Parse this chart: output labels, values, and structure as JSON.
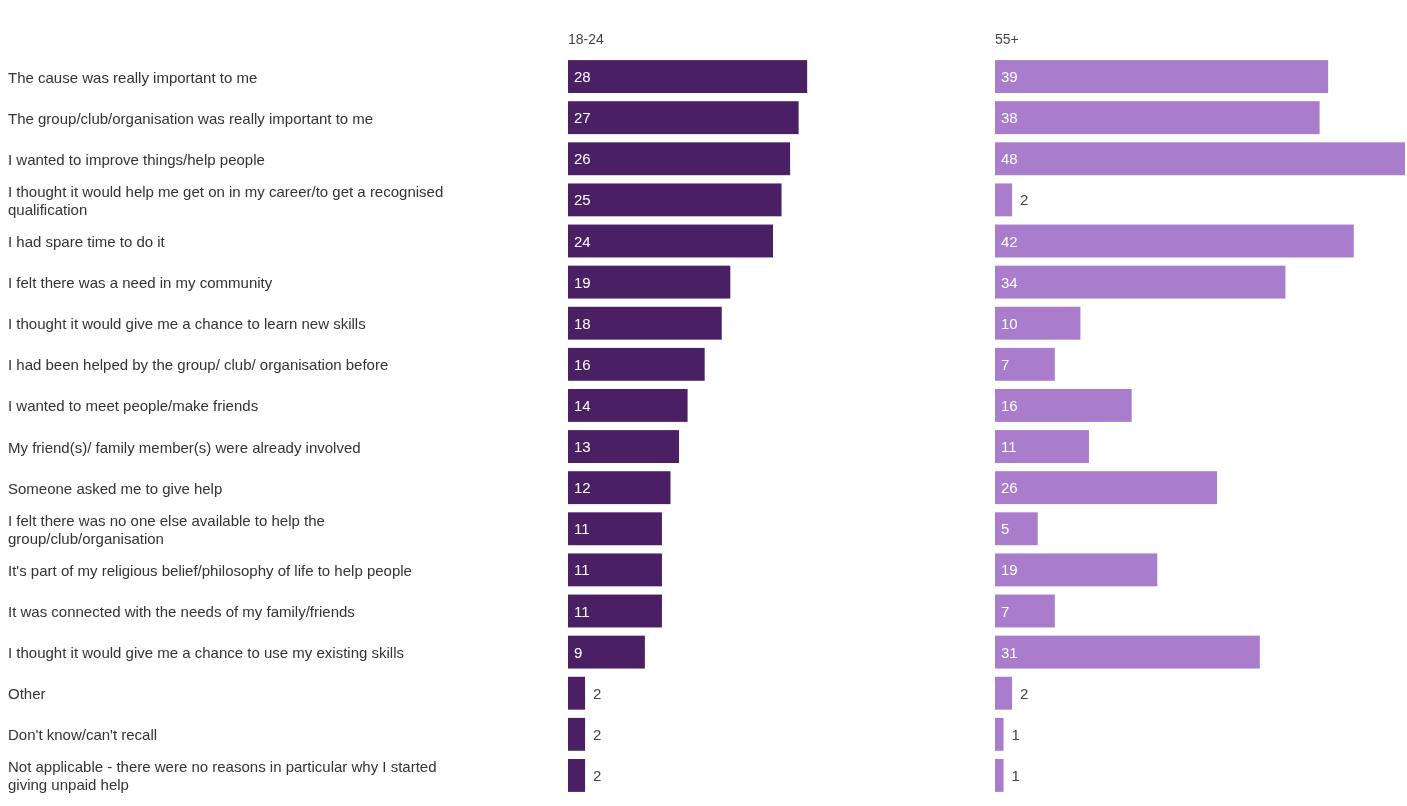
{
  "chart_data": [
    {
      "type": "bar",
      "orientation": "horizontal",
      "title": "18-24",
      "data_labels": true,
      "categories": [
        "The cause was really important to me",
        "The group/club/organisation was really important to me",
        "I wanted to improve things/help people",
        "I thought it would help me get on in my career/to get a recognised qualification",
        "I had spare time to do it",
        "I felt there was a need in my community",
        "I thought it would give me a chance to learn new skills",
        "I had been helped by the group/ club/ organisation before",
        "I wanted to meet people/make friends",
        "My friend(s)/ family member(s) were already involved",
        "Someone asked me to give help",
        "I felt there was no one else available to help the group/club/organisation",
        "It's part of my religious belief/philosophy of life to help people",
        "It was connected with the needs of my family/friends",
        "I thought it would give me a chance to use my existing skills",
        "Other",
        "Don't know/can't recall",
        "Not applicable - there were no reasons in particular why I started giving unpaid help"
      ],
      "series": [
        {
          "color": "#4a1f63",
          "values": [
            28,
            27,
            26,
            25,
            24,
            19,
            18,
            16,
            14,
            13,
            12,
            11,
            11,
            11,
            9,
            2,
            2,
            2
          ]
        }
      ]
    },
    {
      "type": "bar",
      "orientation": "horizontal",
      "title": "55+",
      "data_labels": true,
      "categories": [
        null,
        null,
        null,
        null,
        null,
        null,
        null,
        null,
        null,
        null,
        null,
        null,
        null,
        null,
        null,
        null,
        null,
        null
      ],
      "series": [
        {
          "color": "#a97ccc",
          "values": [
            39,
            38,
            48,
            2,
            42,
            34,
            10,
            7,
            16,
            11,
            26,
            5,
            19,
            7,
            31,
            2,
            1,
            1
          ]
        }
      ]
    }
  ]
}
